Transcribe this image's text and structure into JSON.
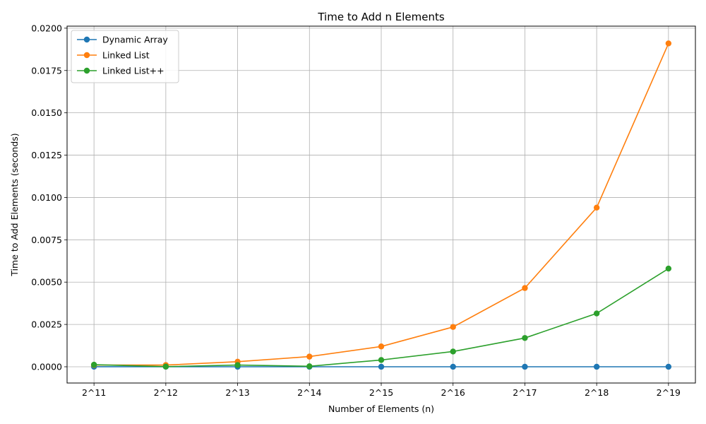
{
  "chart_data": {
    "type": "line",
    "title": "Time to Add n Elements",
    "xlabel": "Number of Elements (n)",
    "ylabel": "Time to Add Elements (seconds)",
    "categories": [
      "2^11",
      "2^12",
      "2^13",
      "2^14",
      "2^15",
      "2^16",
      "2^17",
      "2^18",
      "2^19"
    ],
    "ylim": [
      -0.00096,
      0.02012
    ],
    "yticks": [
      "0.0000",
      "0.0025",
      "0.0050",
      "0.0075",
      "0.0100",
      "0.0125",
      "0.0150",
      "0.0175",
      "0.0200"
    ],
    "ytick_values": [
      0,
      0.0025,
      0.005,
      0.0075,
      0.01,
      0.0125,
      0.015,
      0.0175,
      0.02
    ],
    "grid": true,
    "legend_position": "top-left",
    "series": [
      {
        "name": "Dynamic Array",
        "color": "#1f77b4",
        "values": [
          5e-06,
          2e-06,
          1e-06,
          1e-06,
          1e-06,
          1e-06,
          1e-06,
          1e-06,
          1e-06
        ]
      },
      {
        "name": "Linked List",
        "color": "#ff7f0e",
        "values": [
          0.0001,
          0.0001,
          0.0003,
          0.0006,
          0.0012,
          0.00235,
          0.00465,
          0.0094,
          0.0191
        ]
      },
      {
        "name": "Linked List++",
        "color": "#2ca02c",
        "values": [
          0.00012,
          1e-05,
          0.0001,
          3e-05,
          0.0004,
          0.0009,
          0.0017,
          0.00315,
          0.0058
        ]
      }
    ]
  }
}
